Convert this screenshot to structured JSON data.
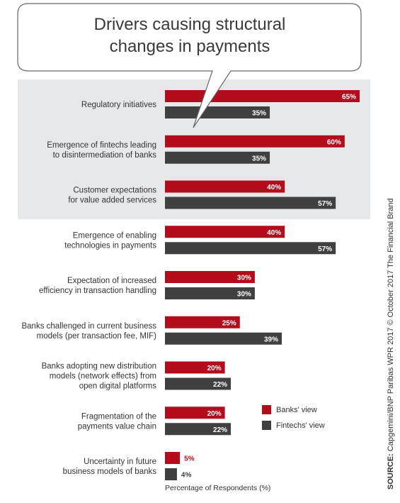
{
  "title_lines": [
    "Drivers causing structural",
    "changes in payments"
  ],
  "chart_data": {
    "type": "bar",
    "orientation": "horizontal",
    "categories": [
      [
        "Regulatory initiatives"
      ],
      [
        "Emergence of fintechs leading",
        "to disintermediation of banks"
      ],
      [
        "Customer expectations",
        "for value added services"
      ],
      [
        "Emergence of enabling",
        "technologies in payments"
      ],
      [
        "Expectation of increased",
        "efficiency in transaction handling"
      ],
      [
        "Banks challenged in current business",
        "models (per transaction fee, MIF)"
      ],
      [
        "Banks adopting new distribution",
        "models (network effects) from",
        "open digital platforms"
      ],
      [
        "Fragmentation of the",
        "payments value chain"
      ],
      [
        "Uncertainty in future",
        "business models of banks"
      ]
    ],
    "series": [
      {
        "name": "Banks' view",
        "color": "#b30c1c",
        "values": [
          65,
          60,
          40,
          40,
          30,
          25,
          20,
          20,
          5
        ],
        "labels": [
          "65%",
          "60%",
          "40%",
          "40%",
          "30%",
          "25%",
          "20%",
          "20%",
          "5%"
        ]
      },
      {
        "name": "Fintechs' view",
        "color": "#404040",
        "values": [
          35,
          35,
          57,
          57,
          30,
          39,
          22,
          22,
          4
        ],
        "labels": [
          "35%",
          "35%",
          "57%",
          "57%",
          "30%",
          "39%",
          "22%",
          "22%",
          "4%"
        ]
      }
    ],
    "xlabel": "Percentage of Respondents (%)",
    "xlim": [
      0,
      65
    ],
    "highlighted_categories": [
      0,
      1,
      2
    ],
    "highlight_color": "#e7e8ea",
    "legend_position": "right"
  },
  "source": {
    "label": "SOURCE:",
    "text": "Capgemini/BNP Paribas WPR 2017 © October 2017 The Financial Brand"
  }
}
